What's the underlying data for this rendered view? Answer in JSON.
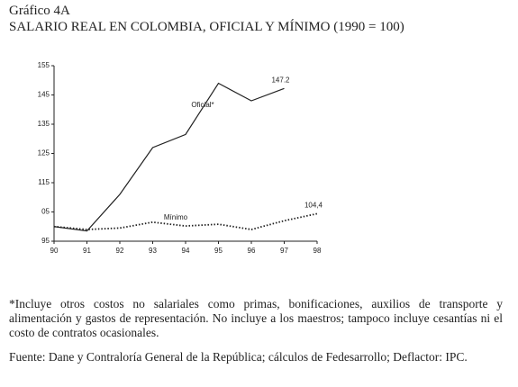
{
  "chart_data": {
    "type": "line",
    "label": "Gráfico 4A",
    "title": "SALARIO REAL EN COLOMBIA, OFICIAL Y MÍNIMO (1990 = 100)",
    "x": [
      90,
      91,
      92,
      93,
      94,
      95,
      96,
      97,
      98
    ],
    "series": [
      {
        "name": "Oficial*",
        "color": "#222222",
        "style": "solid",
        "values": [
          100,
          98.5,
          111,
          127,
          131.5,
          149,
          143,
          147.2,
          null
        ],
        "value_labels": [
          null,
          null,
          null,
          null,
          null,
          null,
          null,
          "147.2",
          null
        ]
      },
      {
        "name": "Mínimo",
        "color": "#222222",
        "style": "dotted",
        "values": [
          100,
          99,
          99.5,
          101.5,
          100.2,
          100.8,
          99,
          102,
          104.4
        ],
        "value_labels": [
          null,
          null,
          null,
          null,
          null,
          null,
          null,
          null,
          "104,4"
        ]
      }
    ],
    "xlim": [
      90,
      98
    ],
    "xticks": [
      90,
      91,
      92,
      93,
      94,
      95,
      96,
      97,
      98
    ],
    "ylim": [
      95,
      155
    ],
    "yticks": [
      95,
      {
        "value": 105,
        "label": "05"
      },
      115,
      125,
      135,
      145,
      155
    ],
    "grid": false,
    "note": "*Incluye otros costos no salariales como primas, bonificaciones, auxilios de transporte y alimentación y gastos de representación. No incluye a los maestros; tampoco incluye cesantías ni el costo de contratos ocasionales.",
    "source": "Fuente: Dane y Contraloría General de la República; cálculos de Fedesarrollo; Deflactor: IPC."
  }
}
